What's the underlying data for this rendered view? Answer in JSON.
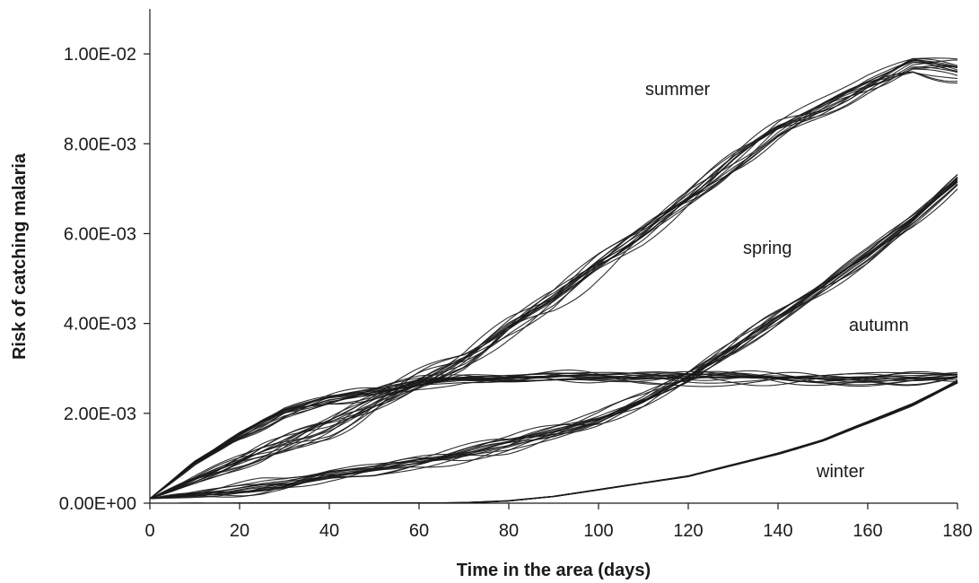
{
  "chart_data": {
    "type": "line",
    "xlabel": "Time in the area (days)",
    "ylabel": "Risk of catching malaria",
    "xlim": [
      0,
      180
    ],
    "ylim": [
      0,
      0.011
    ],
    "x_ticks": [
      0,
      20,
      40,
      60,
      80,
      100,
      120,
      140,
      160,
      180
    ],
    "x_tick_labels": [
      "0",
      "20",
      "40",
      "60",
      "80",
      "100",
      "120",
      "140",
      "160",
      "180"
    ],
    "y_ticks": [
      0,
      0.002,
      0.004,
      0.006,
      0.008,
      0.01
    ],
    "y_tick_labels": [
      "0.00E+00",
      "2.00E-03",
      "4.00E-03",
      "6.00E-03",
      "8.00E-03",
      "1.00E-02"
    ],
    "grid": false,
    "line_color": "#1a1a1a",
    "runs_per_series": 16,
    "series": [
      {
        "name": "summer",
        "x": [
          0,
          10,
          20,
          30,
          40,
          50,
          60,
          70,
          80,
          90,
          100,
          110,
          120,
          130,
          140,
          150,
          160,
          170,
          180
        ],
        "values": [
          0.0001,
          0.0005,
          0.0009,
          0.0013,
          0.0017,
          0.0022,
          0.0027,
          0.0032,
          0.0039,
          0.0045,
          0.0053,
          0.006,
          0.0068,
          0.0076,
          0.0083,
          0.0088,
          0.0093,
          0.0097,
          0.0096
        ],
        "spread": 0.0005
      },
      {
        "name": "spring",
        "x": [
          0,
          10,
          20,
          30,
          40,
          50,
          60,
          70,
          80,
          90,
          100,
          110,
          120,
          130,
          140,
          150,
          160,
          170,
          180
        ],
        "values": [
          0.0001,
          0.0002,
          0.0003,
          0.0004,
          0.0006,
          0.0007,
          0.0009,
          0.0011,
          0.0013,
          0.0016,
          0.0019,
          0.0023,
          0.0028,
          0.0034,
          0.0041,
          0.0048,
          0.0055,
          0.0063,
          0.0072
        ],
        "spread": 0.0003
      },
      {
        "name": "autumn",
        "x": [
          0,
          10,
          20,
          30,
          40,
          50,
          60,
          70,
          80,
          90,
          100,
          110,
          120,
          130,
          140,
          150,
          160,
          170,
          180
        ],
        "values": [
          0.0001,
          0.0009,
          0.0015,
          0.002,
          0.0023,
          0.0025,
          0.0027,
          0.0028,
          0.0028,
          0.0028,
          0.0028,
          0.0028,
          0.0028,
          0.0028,
          0.0028,
          0.0028,
          0.0028,
          0.0028,
          0.0028
        ],
        "spread": 0.00025
      },
      {
        "name": "winter",
        "x": [
          0,
          10,
          20,
          30,
          40,
          50,
          60,
          70,
          80,
          90,
          100,
          110,
          120,
          130,
          140,
          150,
          160,
          170,
          180
        ],
        "values": [
          0,
          0,
          0,
          0,
          0,
          0,
          0,
          1e-05,
          5e-05,
          0.00015,
          0.0003,
          0.00045,
          0.0006,
          0.00085,
          0.0011,
          0.0014,
          0.0018,
          0.0022,
          0.0027
        ],
        "spread": 8e-05
      }
    ]
  }
}
